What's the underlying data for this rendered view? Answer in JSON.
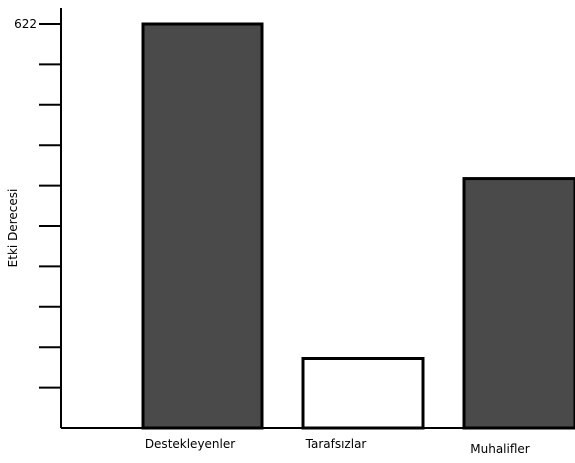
{
  "chart_data": {
    "type": "bar",
    "title": "",
    "xlabel": "",
    "ylabel": "Etki Derecesi",
    "categories": [
      "Destekleyenler",
      "Tarafsızlar",
      "Muhalifler"
    ],
    "values": [
      622,
      107,
      384
    ],
    "ylim": [
      0,
      622
    ],
    "ytick_labels": [
      "622"
    ],
    "ytick_count": 10,
    "grid": false,
    "legend": "none",
    "bar_fills": [
      "#4a4a4a",
      "#ffffff",
      "#4a4a4a"
    ],
    "bar_stroke": "#000000"
  }
}
